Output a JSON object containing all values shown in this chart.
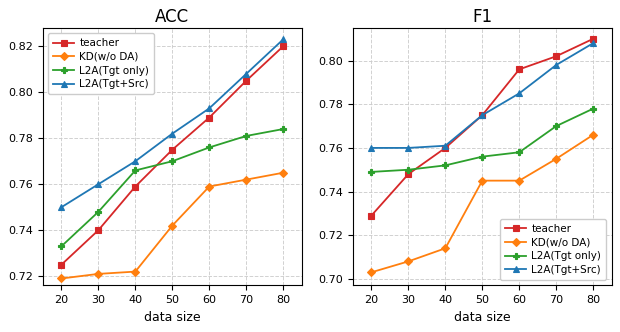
{
  "x": [
    20,
    30,
    40,
    50,
    60,
    70,
    80
  ],
  "acc": {
    "teacher": [
      0.725,
      0.74,
      0.759,
      0.775,
      0.789,
      0.805,
      0.82
    ],
    "kd_wo_da": [
      0.719,
      0.721,
      0.722,
      0.742,
      0.759,
      0.762,
      0.765
    ],
    "l2a_tgt": [
      0.733,
      0.748,
      0.766,
      0.77,
      0.776,
      0.781,
      0.784
    ],
    "l2a_tgt_src": [
      0.75,
      0.76,
      0.77,
      0.782,
      0.793,
      0.808,
      0.823
    ]
  },
  "f1": {
    "teacher": [
      0.729,
      0.748,
      0.76,
      0.775,
      0.796,
      0.802,
      0.81
    ],
    "kd_wo_da": [
      0.703,
      0.708,
      0.714,
      0.745,
      0.745,
      0.755,
      0.766
    ],
    "l2a_tgt": [
      0.749,
      0.75,
      0.752,
      0.756,
      0.758,
      0.77,
      0.778
    ],
    "l2a_tgt_src": [
      0.76,
      0.76,
      0.761,
      0.775,
      0.785,
      0.798,
      0.808
    ]
  },
  "colors": {
    "teacher": "#d62728",
    "kd_wo_da": "#ff7f0e",
    "l2a_tgt": "#2ca02c",
    "l2a_tgt_src": "#1f77b4"
  },
  "markers": {
    "teacher": "s",
    "kd_wo_da": "D",
    "l2a_tgt": "P",
    "l2a_tgt_src": "^"
  },
  "labels": {
    "teacher": "teacher",
    "kd_wo_da": "KD(w/o DA)",
    "l2a_tgt": "L2A(Tgt only)",
    "l2a_tgt_src": "L2A(Tgt+Src)"
  },
  "acc_ylim": [
    0.716,
    0.828
  ],
  "f1_ylim": [
    0.697,
    0.815
  ],
  "acc_yticks": [
    0.72,
    0.74,
    0.76,
    0.78,
    0.8,
    0.82
  ],
  "f1_yticks": [
    0.7,
    0.72,
    0.74,
    0.76,
    0.78,
    0.8
  ],
  "xlabel": "data size",
  "title_acc": "ACC",
  "title_f1": "F1",
  "figsize": [
    6.2,
    3.32
  ],
  "dpi": 100
}
